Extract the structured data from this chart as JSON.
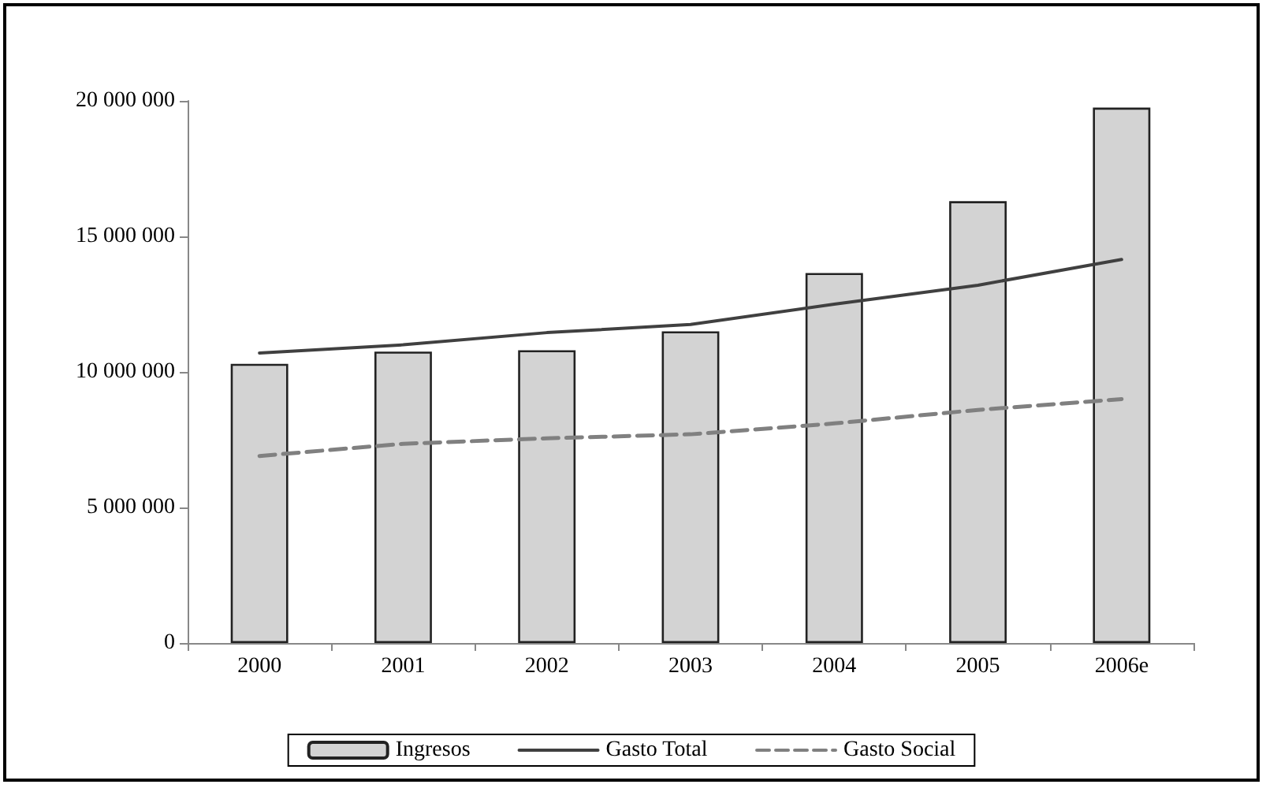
{
  "chart_data": {
    "type": "bar",
    "categories": [
      "2000",
      "2001",
      "2002",
      "2003",
      "2004",
      "2005",
      "2006e"
    ],
    "series": [
      {
        "name": "Ingresos",
        "color": "#d3d3d3",
        "values": [
          10300000,
          10750000,
          10800000,
          11500000,
          13650000,
          16300000,
          19750000
        ]
      },
      {
        "name": "Gasto Total",
        "type": "line",
        "color": "#404040",
        "line_style": "solid",
        "values": [
          10700000,
          11000000,
          11450000,
          11750000,
          12500000,
          13200000,
          14150000
        ]
      },
      {
        "name": "Gasto Social",
        "type": "line",
        "color": "#808080",
        "line_style": "dashed",
        "values": [
          6900000,
          7350000,
          7550000,
          7700000,
          8100000,
          8600000,
          9000000
        ]
      }
    ],
    "ylim": [
      0,
      20000000
    ],
    "yticks": [
      {
        "value": 0,
        "label": "0"
      },
      {
        "value": 5000000,
        "label": "5 000 000"
      },
      {
        "value": 10000000,
        "label": "10 000 000"
      },
      {
        "value": 15000000,
        "label": "15 000 000"
      },
      {
        "value": 20000000,
        "label": "20 000 000"
      }
    ],
    "grid": false,
    "legend": "bottom",
    "marker": "none"
  }
}
